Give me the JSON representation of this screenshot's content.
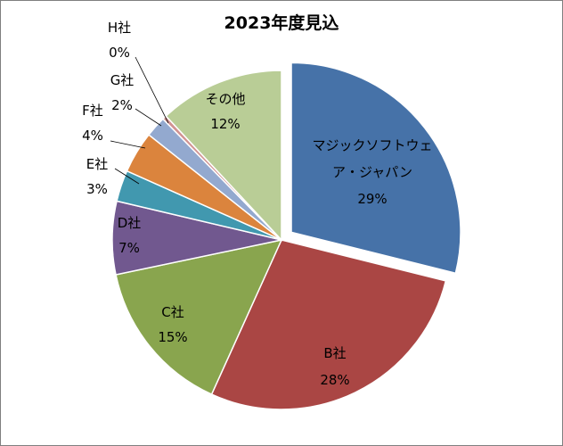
{
  "chart_data": {
    "type": "pie",
    "title": "2023年度見込",
    "categories": [
      "マジックソフトウェア・ジャパン",
      "B社",
      "C社",
      "D社",
      "E社",
      "F社",
      "G社",
      "H社",
      "その他"
    ],
    "values": [
      29,
      28,
      15,
      7,
      3,
      4,
      2,
      0,
      12
    ],
    "colors": [
      "#4672a8",
      "#aa4644",
      "#89a54e",
      "#71588f",
      "#4198af",
      "#db843d",
      "#93a9cf",
      "#d19392",
      "#b9cd96"
    ],
    "label_lines": [
      [
        "マジックソフトウェ",
        "ア・ジャパン",
        "29%"
      ],
      [
        "B社",
        "28%"
      ],
      [
        "C社",
        "15%"
      ],
      [
        "D社",
        "7%"
      ],
      [
        "E社",
        "3%"
      ],
      [
        "F社",
        "4%"
      ],
      [
        "G社",
        "2%"
      ],
      [
        "H社",
        "0%"
      ],
      [
        "その他",
        "12%"
      ]
    ],
    "exploded": "マジックソフトウェア・ジャパン"
  }
}
